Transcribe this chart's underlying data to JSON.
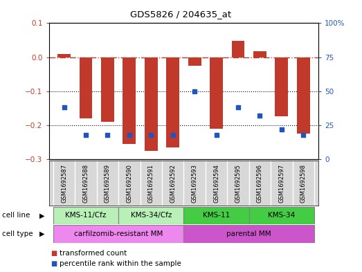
{
  "title": "GDS5826 / 204635_at",
  "samples": [
    "GSM1692587",
    "GSM1692588",
    "GSM1692589",
    "GSM1692590",
    "GSM1692591",
    "GSM1692592",
    "GSM1692593",
    "GSM1692594",
    "GSM1692595",
    "GSM1692596",
    "GSM1692597",
    "GSM1692598"
  ],
  "transformed_count": [
    0.01,
    -0.18,
    -0.19,
    -0.255,
    -0.275,
    -0.265,
    -0.025,
    -0.21,
    0.048,
    0.018,
    -0.175,
    -0.225
  ],
  "percentile_rank": [
    38,
    18,
    18,
    18,
    18,
    18,
    50,
    18,
    38,
    32,
    22,
    18
  ],
  "ylim_left": [
    -0.3,
    0.1
  ],
  "ylim_right": [
    0,
    100
  ],
  "yticks_left": [
    0.1,
    0.0,
    -0.1,
    -0.2,
    -0.3
  ],
  "yticks_right": [
    100,
    75,
    50,
    25,
    0
  ],
  "bar_color": "#c0392b",
  "dot_color": "#2255bb",
  "hline_color": "#c0392b",
  "cell_line_groups": [
    {
      "label": "KMS-11/Cfz",
      "start": 0,
      "end": 3,
      "color": "#b8f0b8"
    },
    {
      "label": "KMS-34/Cfz",
      "start": 3,
      "end": 6,
      "color": "#b8f0b8"
    },
    {
      "label": "KMS-11",
      "start": 6,
      "end": 9,
      "color": "#44cc44"
    },
    {
      "label": "KMS-34",
      "start": 9,
      "end": 12,
      "color": "#44cc44"
    }
  ],
  "cell_type_groups": [
    {
      "label": "carfilzomib-resistant MM",
      "start": 0,
      "end": 6,
      "color": "#ee88ee"
    },
    {
      "label": "parental MM",
      "start": 6,
      "end": 12,
      "color": "#cc55cc"
    }
  ],
  "legend_items": [
    {
      "label": "transformed count",
      "color": "#c0392b"
    },
    {
      "label": "percentile rank within the sample",
      "color": "#2255bb"
    }
  ],
  "bar_width": 0.6
}
